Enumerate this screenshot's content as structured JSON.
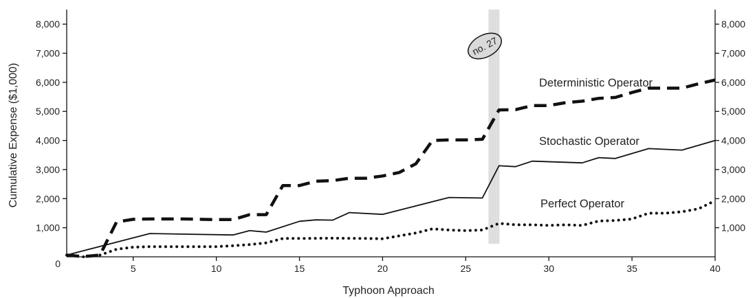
{
  "chart_data": {
    "type": "line",
    "title": "",
    "xlabel": "Typhoon Approach",
    "ylabel": "Cumulative Expense ($1,000)",
    "xlim": [
      1,
      40
    ],
    "ylim": [
      0,
      8500
    ],
    "x_ticks": [
      5,
      10,
      15,
      20,
      25,
      30,
      35,
      40
    ],
    "y_ticks": [
      1000,
      2000,
      3000,
      4000,
      5000,
      6000,
      7000,
      8000
    ],
    "x_tick_labels": [
      "5",
      "10",
      "15",
      "20",
      "25",
      "30",
      "35",
      "40"
    ],
    "y_tick_labels": [
      "1,000",
      "2,000",
      "3,000",
      "4,000",
      "5,000",
      "6,000",
      "7,000",
      "8,000"
    ],
    "origin_label": "0",
    "right_axis_tick_labels": [
      "1,000",
      "2,000",
      "3,000",
      "4,000",
      "5,000",
      "6,000",
      "7,000",
      "8,000"
    ],
    "grid": false,
    "legend": "none (direct labels)",
    "series": [
      {
        "name": "Deterministic Operator",
        "style": "dashed",
        "color": "#111111",
        "points": [
          [
            1,
            60
          ],
          [
            2,
            10
          ],
          [
            3,
            60
          ],
          [
            4,
            1200
          ],
          [
            5,
            1290
          ],
          [
            6,
            1300
          ],
          [
            8,
            1300
          ],
          [
            10,
            1280
          ],
          [
            11,
            1280
          ],
          [
            12,
            1450
          ],
          [
            13,
            1450
          ],
          [
            14,
            2450
          ],
          [
            15,
            2450
          ],
          [
            16,
            2600
          ],
          [
            17,
            2620
          ],
          [
            18,
            2700
          ],
          [
            19,
            2700
          ],
          [
            20,
            2780
          ],
          [
            21,
            2900
          ],
          [
            22,
            3200
          ],
          [
            23,
            4000
          ],
          [
            24,
            4020
          ],
          [
            25,
            4020
          ],
          [
            26,
            4040
          ],
          [
            27,
            5050
          ],
          [
            28,
            5060
          ],
          [
            29,
            5200
          ],
          [
            30,
            5200
          ],
          [
            31,
            5300
          ],
          [
            32,
            5350
          ],
          [
            33,
            5450
          ],
          [
            34,
            5480
          ],
          [
            35,
            5650
          ],
          [
            36,
            5800
          ],
          [
            37,
            5800
          ],
          [
            38,
            5800
          ],
          [
            39,
            5950
          ],
          [
            40,
            6080
          ]
        ]
      },
      {
        "name": "Stochastic Operator",
        "style": "solid",
        "color": "#111111",
        "points": [
          [
            1,
            60
          ],
          [
            6,
            800
          ],
          [
            11,
            750
          ],
          [
            12,
            900
          ],
          [
            13,
            850
          ],
          [
            15,
            1220
          ],
          [
            16,
            1270
          ],
          [
            17,
            1260
          ],
          [
            18,
            1520
          ],
          [
            20,
            1460
          ],
          [
            24,
            2040
          ],
          [
            26,
            2020
          ],
          [
            27,
            3130
          ],
          [
            28,
            3100
          ],
          [
            29,
            3290
          ],
          [
            32,
            3230
          ],
          [
            33,
            3410
          ],
          [
            34,
            3380
          ],
          [
            36,
            3720
          ],
          [
            38,
            3670
          ],
          [
            40,
            4000
          ]
        ]
      },
      {
        "name": "Perfect Operator",
        "style": "dotted",
        "color": "#111111",
        "points": [
          [
            1,
            60
          ],
          [
            2,
            0
          ],
          [
            3,
            60
          ],
          [
            4,
            260
          ],
          [
            5,
            330
          ],
          [
            6,
            350
          ],
          [
            8,
            350
          ],
          [
            10,
            350
          ],
          [
            11,
            380
          ],
          [
            12,
            420
          ],
          [
            13,
            480
          ],
          [
            14,
            630
          ],
          [
            15,
            630
          ],
          [
            17,
            640
          ],
          [
            19,
            630
          ],
          [
            20,
            620
          ],
          [
            21,
            720
          ],
          [
            22,
            820
          ],
          [
            23,
            960
          ],
          [
            24,
            920
          ],
          [
            25,
            900
          ],
          [
            26,
            920
          ],
          [
            27,
            1150
          ],
          [
            28,
            1100
          ],
          [
            29,
            1100
          ],
          [
            30,
            1080
          ],
          [
            31,
            1100
          ],
          [
            32,
            1080
          ],
          [
            33,
            1230
          ],
          [
            34,
            1250
          ],
          [
            35,
            1300
          ],
          [
            36,
            1500
          ],
          [
            37,
            1500
          ],
          [
            38,
            1550
          ],
          [
            39,
            1650
          ],
          [
            40,
            1930
          ]
        ]
      }
    ],
    "annotations": [
      {
        "text": "no. 27",
        "x": 27,
        "note": "shaded vertical band"
      }
    ]
  }
}
